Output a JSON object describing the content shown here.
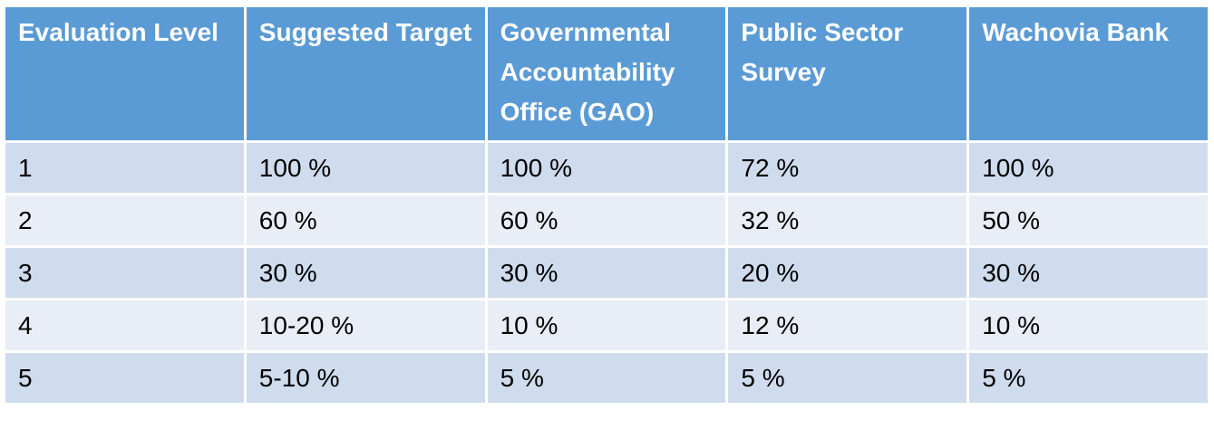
{
  "table": {
    "header": [
      "Evaluation Level",
      "Suggested Target",
      "Governmental Accountability Office (GAO)",
      "Public Sector Survey",
      "Wachovia Bank"
    ],
    "rows": [
      [
        "1",
        "100 %",
        "100 %",
        "72 %",
        "100 %"
      ],
      [
        "2",
        "60 %",
        "60 %",
        "32 %",
        "50 %"
      ],
      [
        "3",
        "30 %",
        "30 %",
        "20 %",
        "30 %"
      ],
      [
        "4",
        "10-20 %",
        "10 %",
        "12 %",
        "10 %"
      ],
      [
        "5",
        "5-10 %",
        "5 %",
        "5 %",
        "5 %"
      ]
    ]
  }
}
